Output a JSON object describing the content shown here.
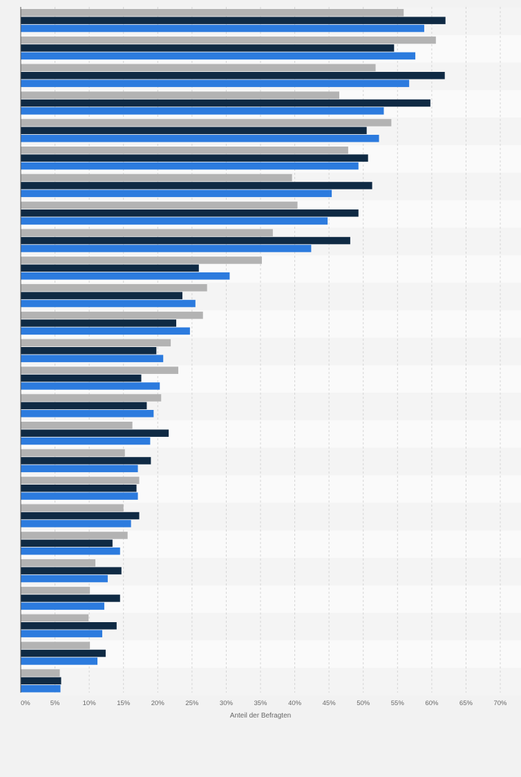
{
  "chart_data": {
    "type": "bar",
    "orientation": "horizontal",
    "xlabel": "Anteil der Befragten",
    "ylabel": "",
    "xlim": [
      0,
      70
    ],
    "x_ticks": [
      "0%",
      "5%",
      "10%",
      "15%",
      "20%",
      "25%",
      "30%",
      "35%",
      "40%",
      "45%",
      "50%",
      "55%",
      "60%",
      "65%",
      "70%"
    ],
    "grid": true,
    "legend": "none",
    "category_count": 25,
    "series": [
      {
        "color": "#b3b3b3",
        "values": [
          55.9,
          60.6,
          51.8,
          46.5,
          54.1,
          47.8,
          39.6,
          40.4,
          36.8,
          35.2,
          27.2,
          26.6,
          21.9,
          23.0,
          20.5,
          16.3,
          15.2,
          17.3,
          15.0,
          15.6,
          10.9,
          10.1,
          9.9,
          10.1,
          5.7
        ]
      },
      {
        "color": "#0f2a44",
        "values": [
          62.0,
          54.5,
          61.9,
          59.8,
          50.5,
          50.7,
          51.3,
          49.3,
          48.1,
          26.0,
          23.6,
          22.7,
          19.8,
          17.6,
          18.4,
          21.6,
          19.0,
          16.9,
          17.3,
          13.4,
          14.7,
          14.5,
          14.0,
          12.4,
          5.9
        ]
      },
      {
        "color": "#2c7bde",
        "values": [
          58.9,
          57.6,
          56.7,
          53.0,
          52.3,
          49.3,
          45.4,
          44.8,
          42.4,
          30.5,
          25.5,
          24.7,
          20.8,
          20.3,
          19.4,
          18.9,
          17.1,
          17.1,
          16.1,
          14.5,
          12.7,
          12.2,
          11.9,
          11.2,
          5.8
        ]
      }
    ]
  }
}
